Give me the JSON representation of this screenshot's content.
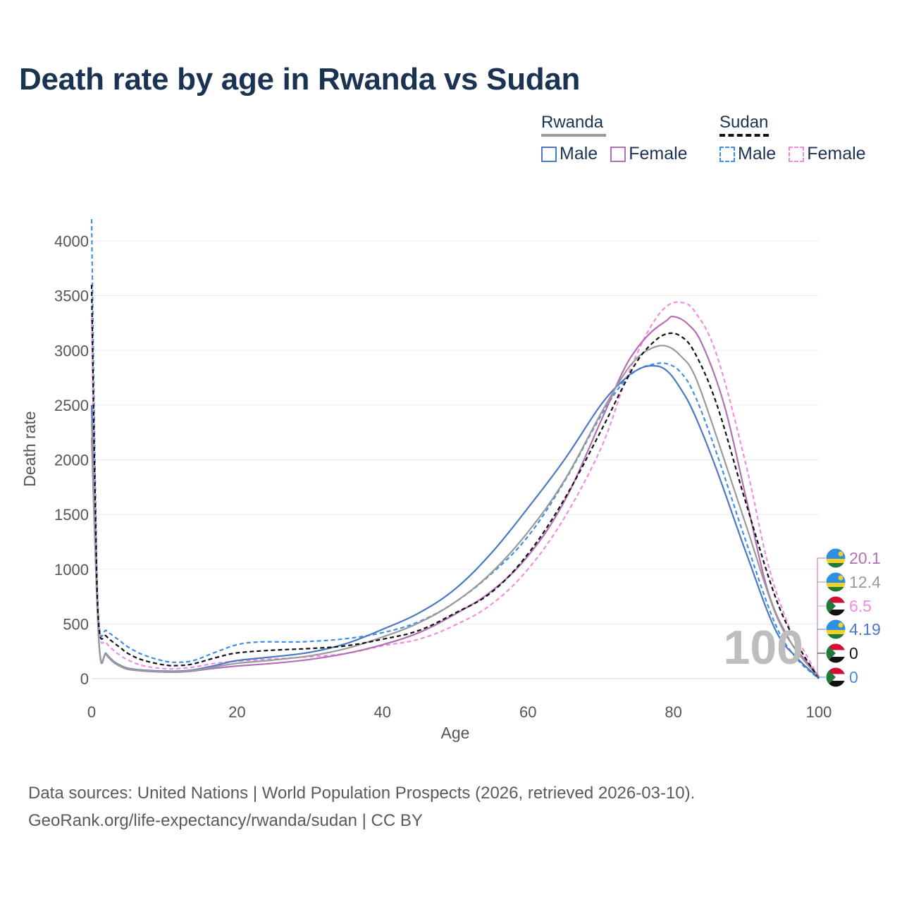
{
  "title": "Death rate by age in Rwanda vs Sudan",
  "legend": {
    "rwanda": {
      "label": "Rwanda",
      "male": "Male",
      "female": "Female"
    },
    "sudan": {
      "label": "Sudan",
      "male": "Male",
      "female": "Female"
    }
  },
  "age_readout": "100",
  "footer": {
    "line1": "Data sources: United Nations | World Population Prospects (2026, retrieved 2026-03-10).",
    "line2": "GeoRank.org/life-expectancy/rwanda/sudan | CC BY"
  },
  "chart_data": {
    "type": "line",
    "title": "Death rate by age in Rwanda vs Sudan",
    "xlabel": "Age",
    "ylabel": "Death rate",
    "xlim": [
      0,
      100
    ],
    "ylim": [
      0,
      4200
    ],
    "x_ticks": [
      0,
      20,
      40,
      60,
      80,
      100
    ],
    "y_ticks": [
      0,
      500,
      1000,
      1500,
      2000,
      2500,
      3000,
      3500,
      4000
    ],
    "grid": true,
    "series": [
      {
        "name": "Rwanda Male",
        "country": "Rwanda",
        "sex": "Male",
        "color": "#4a78c4",
        "dashed": false,
        "points": [
          [
            0,
            2500
          ],
          [
            1,
            350
          ],
          [
            2,
            230
          ],
          [
            3,
            160
          ],
          [
            4,
            120
          ],
          [
            5,
            95
          ],
          [
            7,
            78
          ],
          [
            10,
            68
          ],
          [
            12,
            68
          ],
          [
            14,
            80
          ],
          [
            17,
            120
          ],
          [
            20,
            165
          ],
          [
            25,
            200
          ],
          [
            30,
            240
          ],
          [
            35,
            320
          ],
          [
            40,
            450
          ],
          [
            45,
            600
          ],
          [
            50,
            820
          ],
          [
            55,
            1150
          ],
          [
            60,
            1560
          ],
          [
            65,
            2000
          ],
          [
            70,
            2500
          ],
          [
            73,
            2720
          ],
          [
            75,
            2820
          ],
          [
            77,
            2860
          ],
          [
            79,
            2820
          ],
          [
            81,
            2650
          ],
          [
            83,
            2400
          ],
          [
            86,
            1900
          ],
          [
            90,
            1150
          ],
          [
            94,
            450
          ],
          [
            97,
            190
          ],
          [
            100,
            4.19
          ]
        ]
      },
      {
        "name": "Rwanda Female",
        "country": "Rwanda",
        "sex": "Female",
        "color": "#b36fb6",
        "dashed": false,
        "points": [
          [
            0,
            2200
          ],
          [
            1,
            340
          ],
          [
            2,
            220
          ],
          [
            3,
            150
          ],
          [
            4,
            110
          ],
          [
            5,
            85
          ],
          [
            7,
            70
          ],
          [
            10,
            60
          ],
          [
            12,
            60
          ],
          [
            14,
            70
          ],
          [
            17,
            95
          ],
          [
            20,
            115
          ],
          [
            25,
            140
          ],
          [
            30,
            175
          ],
          [
            35,
            230
          ],
          [
            40,
            310
          ],
          [
            45,
            420
          ],
          [
            50,
            590
          ],
          [
            55,
            800
          ],
          [
            60,
            1120
          ],
          [
            65,
            1620
          ],
          [
            70,
            2350
          ],
          [
            73,
            2800
          ],
          [
            75,
            3020
          ],
          [
            77,
            3170
          ],
          [
            79,
            3270
          ],
          [
            80,
            3310
          ],
          [
            82,
            3240
          ],
          [
            84,
            3050
          ],
          [
            87,
            2500
          ],
          [
            90,
            1650
          ],
          [
            93,
            800
          ],
          [
            96,
            350
          ],
          [
            98,
            180
          ],
          [
            100,
            20.1
          ]
        ]
      },
      {
        "name": "Rwanda Total",
        "country": "Rwanda",
        "sex": "Total",
        "color": "#9a9a9a",
        "dashed": false,
        "points": [
          [
            0,
            2350
          ],
          [
            1,
            345
          ],
          [
            2,
            225
          ],
          [
            3,
            155
          ],
          [
            4,
            115
          ],
          [
            5,
            90
          ],
          [
            7,
            74
          ],
          [
            10,
            64
          ],
          [
            12,
            64
          ],
          [
            14,
            75
          ],
          [
            17,
            108
          ],
          [
            20,
            140
          ],
          [
            25,
            170
          ],
          [
            30,
            208
          ],
          [
            35,
            275
          ],
          [
            40,
            380
          ],
          [
            45,
            510
          ],
          [
            50,
            700
          ],
          [
            55,
            970
          ],
          [
            60,
            1340
          ],
          [
            65,
            1810
          ],
          [
            70,
            2420
          ],
          [
            73,
            2760
          ],
          [
            75,
            2930
          ],
          [
            77,
            3020
          ],
          [
            79,
            3040
          ],
          [
            81,
            2950
          ],
          [
            83,
            2760
          ],
          [
            86,
            2200
          ],
          [
            90,
            1400
          ],
          [
            94,
            600
          ],
          [
            97,
            250
          ],
          [
            100,
            12.4
          ]
        ]
      },
      {
        "name": "Sudan Male",
        "country": "Sudan",
        "sex": "Male",
        "color": "#3f8fe6",
        "dashed": true,
        "points": [
          [
            0,
            4200
          ],
          [
            0.5,
            1800
          ],
          [
            1,
            510
          ],
          [
            2,
            440
          ],
          [
            3,
            390
          ],
          [
            4,
            340
          ],
          [
            5,
            290
          ],
          [
            7,
            220
          ],
          [
            10,
            160
          ],
          [
            12,
            150
          ],
          [
            14,
            165
          ],
          [
            17,
            240
          ],
          [
            20,
            310
          ],
          [
            23,
            335
          ],
          [
            27,
            335
          ],
          [
            30,
            340
          ],
          [
            35,
            365
          ],
          [
            40,
            420
          ],
          [
            45,
            520
          ],
          [
            50,
            700
          ],
          [
            55,
            960
          ],
          [
            60,
            1300
          ],
          [
            65,
            1800
          ],
          [
            70,
            2400
          ],
          [
            73,
            2700
          ],
          [
            75,
            2820
          ],
          [
            77,
            2870
          ],
          [
            79,
            2880
          ],
          [
            81,
            2800
          ],
          [
            83,
            2580
          ],
          [
            86,
            2050
          ],
          [
            90,
            1250
          ],
          [
            94,
            500
          ],
          [
            97,
            180
          ],
          [
            100,
            0
          ]
        ]
      },
      {
        "name": "Sudan Female",
        "country": "Sudan",
        "sex": "Female",
        "color": "#f28ce0",
        "dashed": true,
        "points": [
          [
            0,
            3300
          ],
          [
            0.5,
            1400
          ],
          [
            1,
            440
          ],
          [
            2,
            330
          ],
          [
            3,
            260
          ],
          [
            4,
            210
          ],
          [
            5,
            170
          ],
          [
            7,
            120
          ],
          [
            10,
            90
          ],
          [
            12,
            92
          ],
          [
            14,
            105
          ],
          [
            17,
            140
          ],
          [
            20,
            160
          ],
          [
            25,
            180
          ],
          [
            30,
            200
          ],
          [
            35,
            230
          ],
          [
            40,
            300
          ],
          [
            45,
            360
          ],
          [
            50,
            490
          ],
          [
            55,
            680
          ],
          [
            60,
            1000
          ],
          [
            65,
            1470
          ],
          [
            70,
            2100
          ],
          [
            73,
            2650
          ],
          [
            75,
            2970
          ],
          [
            77,
            3230
          ],
          [
            79,
            3400
          ],
          [
            81,
            3440
          ],
          [
            83,
            3350
          ],
          [
            86,
            2950
          ],
          [
            90,
            1950
          ],
          [
            93,
            1050
          ],
          [
            96,
            460
          ],
          [
            98,
            250
          ],
          [
            100,
            6.5
          ]
        ]
      },
      {
        "name": "Sudan Total",
        "country": "Sudan",
        "sex": "Total",
        "color": "#111111",
        "dashed": true,
        "points": [
          [
            0,
            3600
          ],
          [
            0.5,
            1600
          ],
          [
            1,
            480
          ],
          [
            2,
            390
          ],
          [
            3,
            330
          ],
          [
            4,
            280
          ],
          [
            5,
            230
          ],
          [
            7,
            170
          ],
          [
            10,
            125
          ],
          [
            12,
            120
          ],
          [
            14,
            135
          ],
          [
            17,
            190
          ],
          [
            20,
            235
          ],
          [
            25,
            260
          ],
          [
            30,
            275
          ],
          [
            35,
            300
          ],
          [
            40,
            360
          ],
          [
            45,
            440
          ],
          [
            50,
            600
          ],
          [
            55,
            790
          ],
          [
            60,
            1140
          ],
          [
            65,
            1640
          ],
          [
            70,
            2260
          ],
          [
            73,
            2660
          ],
          [
            75,
            2900
          ],
          [
            77,
            3060
          ],
          [
            79,
            3150
          ],
          [
            81,
            3130
          ],
          [
            83,
            2970
          ],
          [
            86,
            2500
          ],
          [
            90,
            1600
          ],
          [
            94,
            750
          ],
          [
            97,
            320
          ],
          [
            100,
            0
          ]
        ]
      }
    ],
    "end_labels": [
      {
        "value": "20.1",
        "country": "Rwanda",
        "color": "#b36fb6"
      },
      {
        "value": "12.4",
        "country": "Rwanda",
        "color": "#9a9a9a"
      },
      {
        "value": "6.5",
        "country": "Sudan",
        "color": "#f28ce0"
      },
      {
        "value": "4.19",
        "country": "Rwanda",
        "color": "#4a78c4"
      },
      {
        "value": "0",
        "country": "Sudan",
        "color": "#111111"
      },
      {
        "value": "0",
        "country": "Sudan",
        "color": "#3f8fe6"
      }
    ]
  }
}
